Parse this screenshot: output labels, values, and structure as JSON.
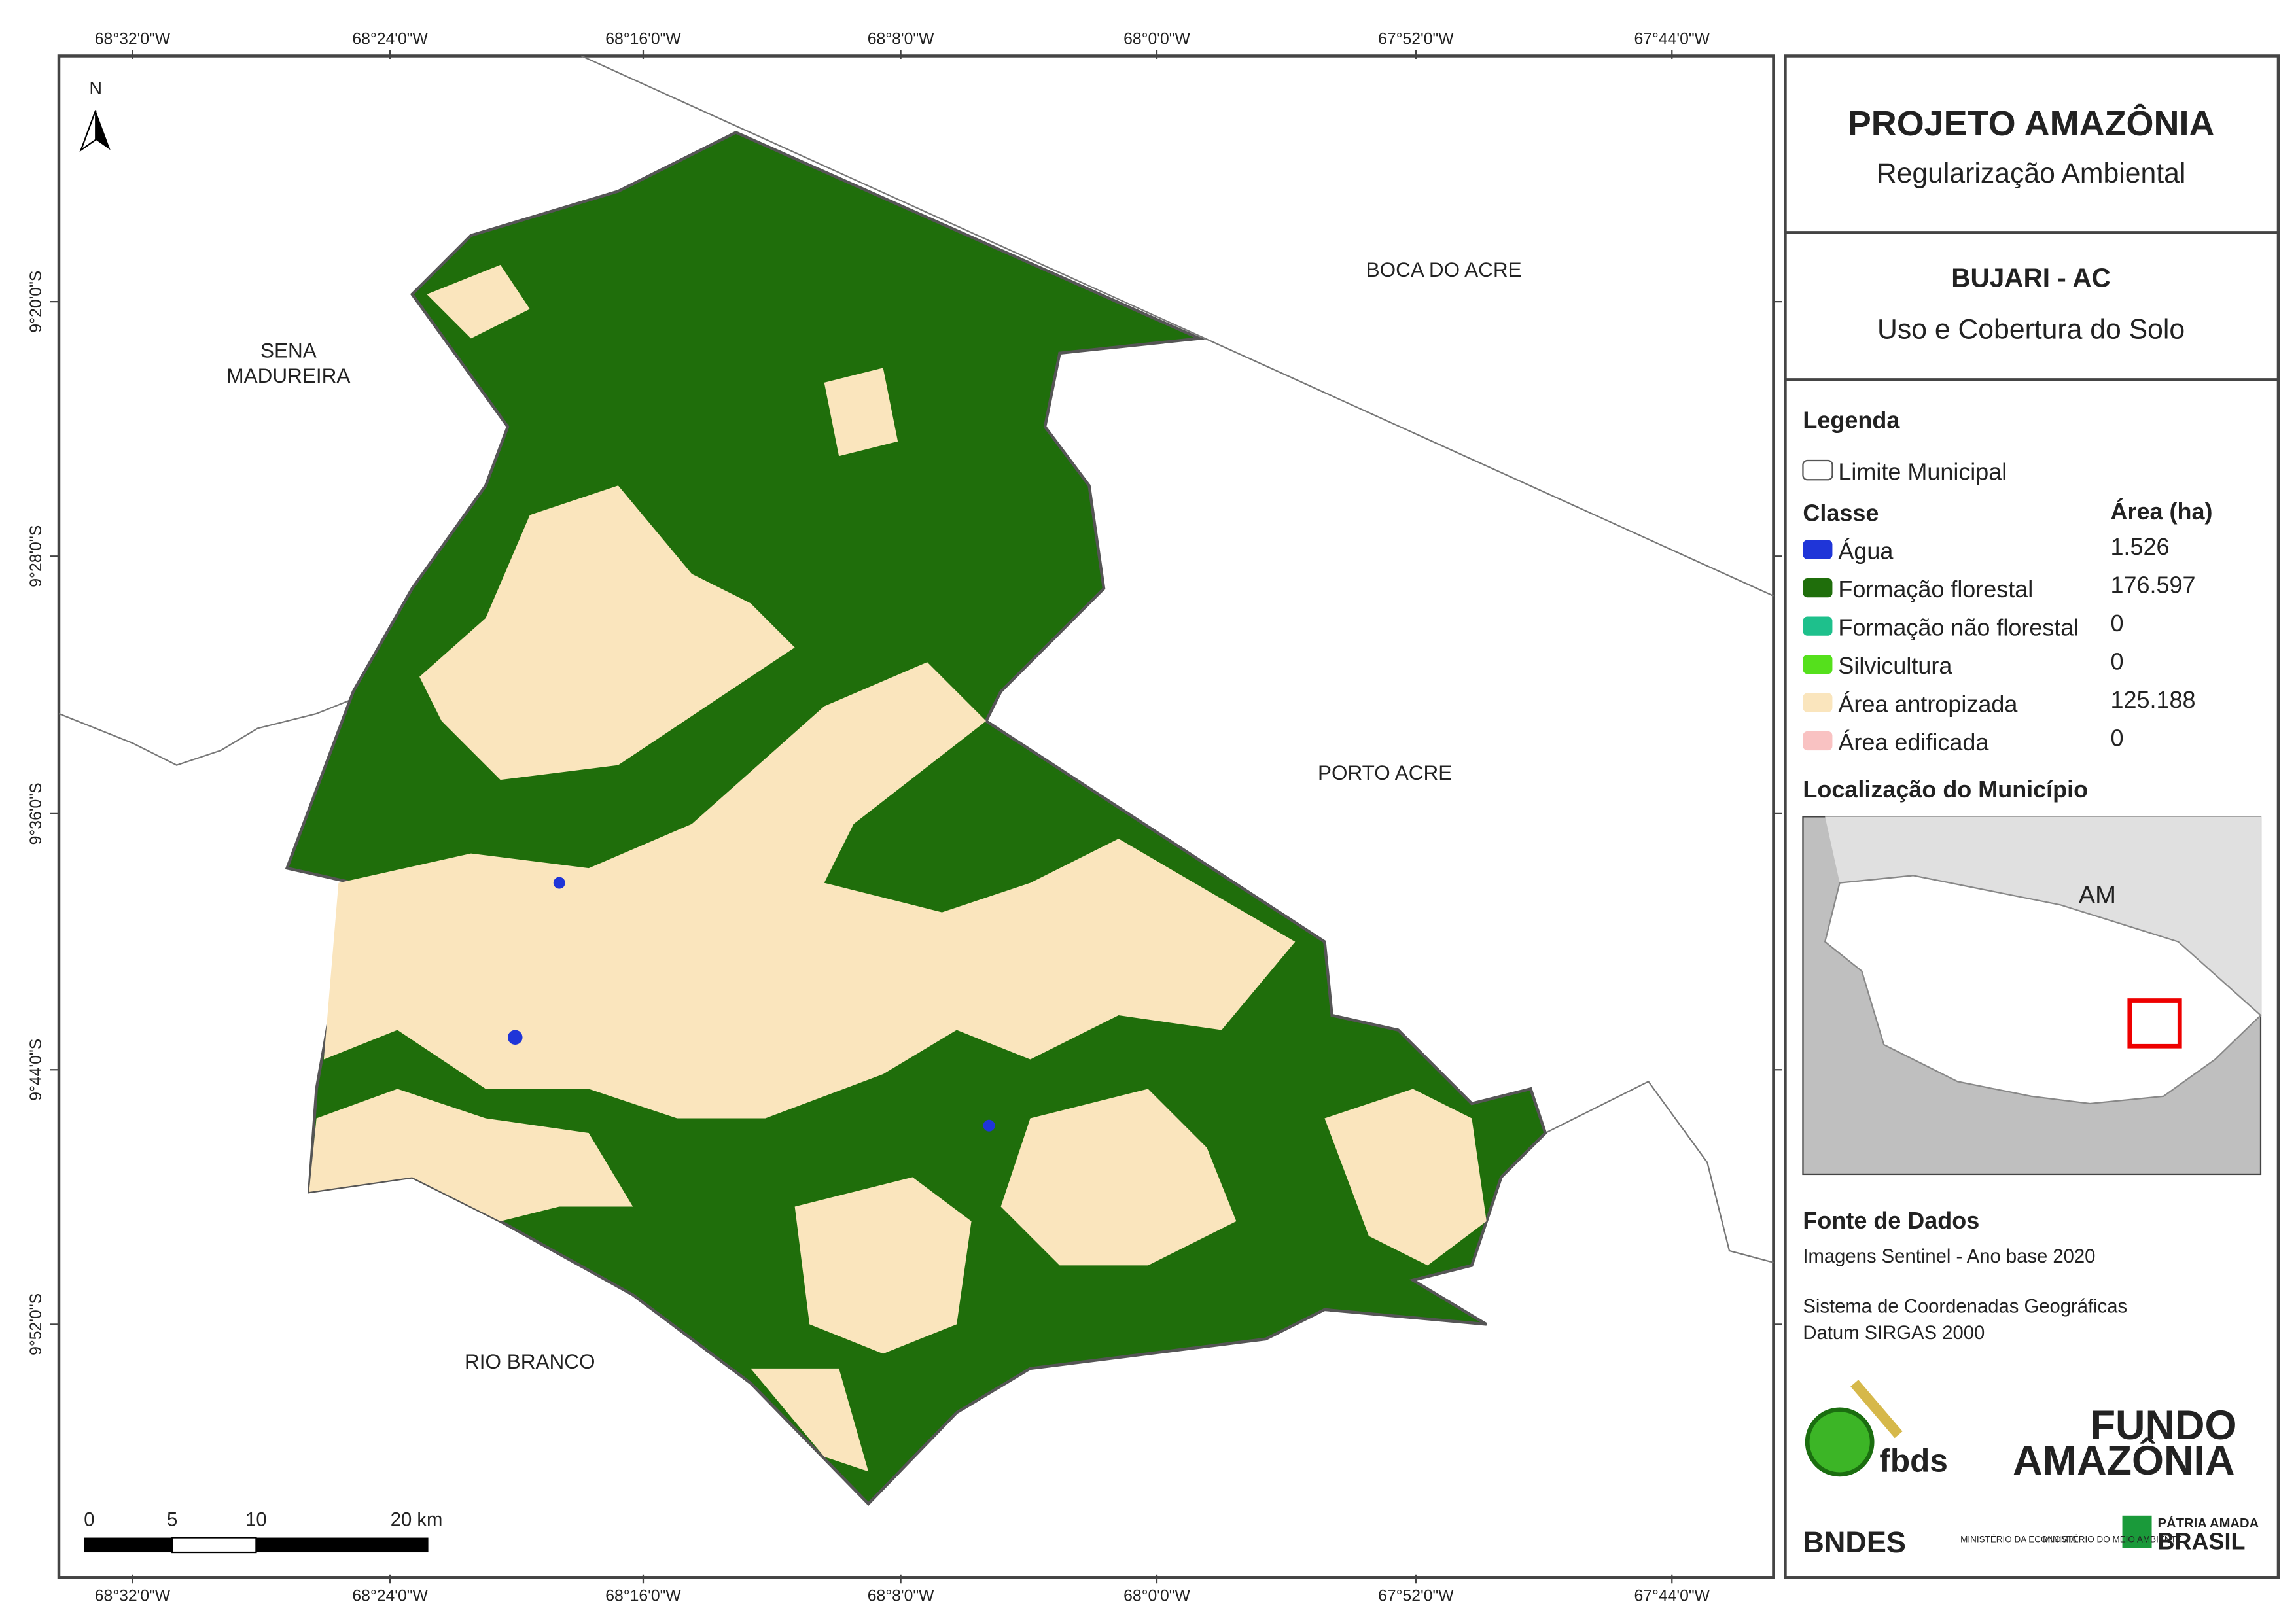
{
  "map": {
    "x_ticks": [
      "68°32'0\"W",
      "68°24'0\"W",
      "68°16'0\"W",
      "68°8'0\"W",
      "68°0'0\"W",
      "67°52'0\"W",
      "67°44'0\"W"
    ],
    "y_ticks": [
      "9°20'0\"S",
      "9°28'0\"S",
      "9°36'0\"S",
      "9°44'0\"S",
      "9°52'0\"S"
    ],
    "north": "N",
    "places": [
      "SENA MADUREIRA",
      "BOCA DO ACRE",
      "PORTO ACRE",
      "RIO BRANCO"
    ],
    "scale_bar": [
      "0",
      "5",
      "10",
      "20 km"
    ]
  },
  "panel": {
    "title": "PROJETO AMAZÔNIA",
    "subtitle": "Regularização Ambiental",
    "municipality": "BUJARI - AC",
    "theme": "Uso e Cobertura do Solo",
    "legend": {
      "title": "Legenda",
      "boundary": "Limite Municipal",
      "class_header": "Classe",
      "area_header": "Área (ha)",
      "rows": [
        [
          "Água",
          "1.526"
        ],
        [
          "Formação florestal",
          "176.597"
        ],
        [
          "Formação não florestal",
          "0"
        ],
        [
          "Silvicultura",
          "0"
        ],
        [
          "Área antropizada",
          "125.188"
        ],
        [
          "Área edificada",
          "0"
        ]
      ]
    },
    "location_title": "Localização do Município",
    "inset_label": "AM",
    "sources_title": "Fonte de Dados",
    "sources": [
      "Imagens Sentinel - Ano base 2020",
      "Sistema de Coordenadas Geográficas",
      "Datum SIRGAS 2000"
    ],
    "logos": [
      "fbds",
      "FUNDO",
      "AMAZÔNIA",
      "BNDES",
      "MINISTÉRIO DA ECONOMIA",
      "MINISTÉRIO DO MEIO AMBIENTE",
      "PÁTRIA AMADA",
      "BRASIL"
    ]
  }
}
